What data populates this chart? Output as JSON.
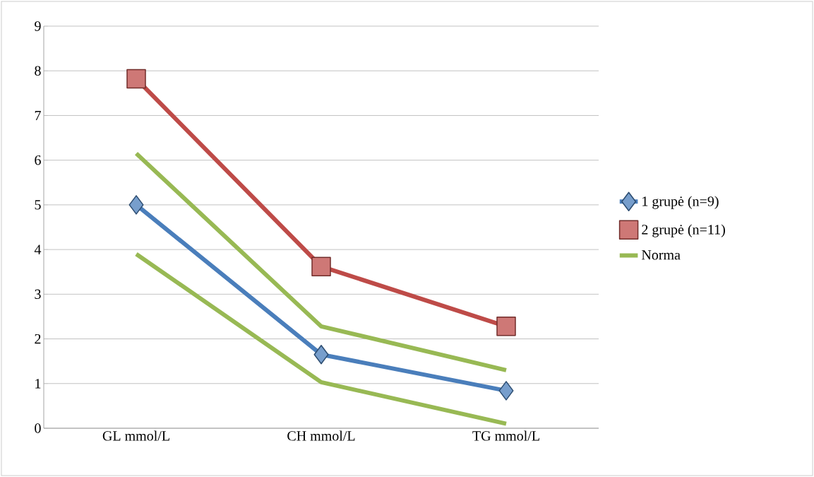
{
  "chart_data": {
    "type": "line",
    "categories": [
      "GL mmol/L",
      "CH mmol/L",
      "TG mmol/L"
    ],
    "series": [
      {
        "name": "1 grupė (n=9)",
        "color": "#4a7ebb",
        "marker": "diamond",
        "values": [
          5.0,
          1.65,
          0.84
        ]
      },
      {
        "name": "2 grupė (n=11)",
        "color": "#be4b48",
        "marker": "square",
        "values": [
          7.82,
          3.62,
          2.28
        ]
      },
      {
        "name": "Norma",
        "color": "#98b954",
        "marker": "none",
        "values": [
          6.15,
          2.28,
          1.3
        ]
      },
      {
        "color": "#98b954",
        "marker": "none",
        "values": [
          3.9,
          1.03,
          0.1
        ]
      }
    ],
    "ylim": [
      0,
      9
    ],
    "yticks": [
      0,
      1,
      2,
      3,
      4,
      5,
      6,
      7,
      8,
      9
    ],
    "grid": "y",
    "legend": "right",
    "line_style": "solid"
  }
}
